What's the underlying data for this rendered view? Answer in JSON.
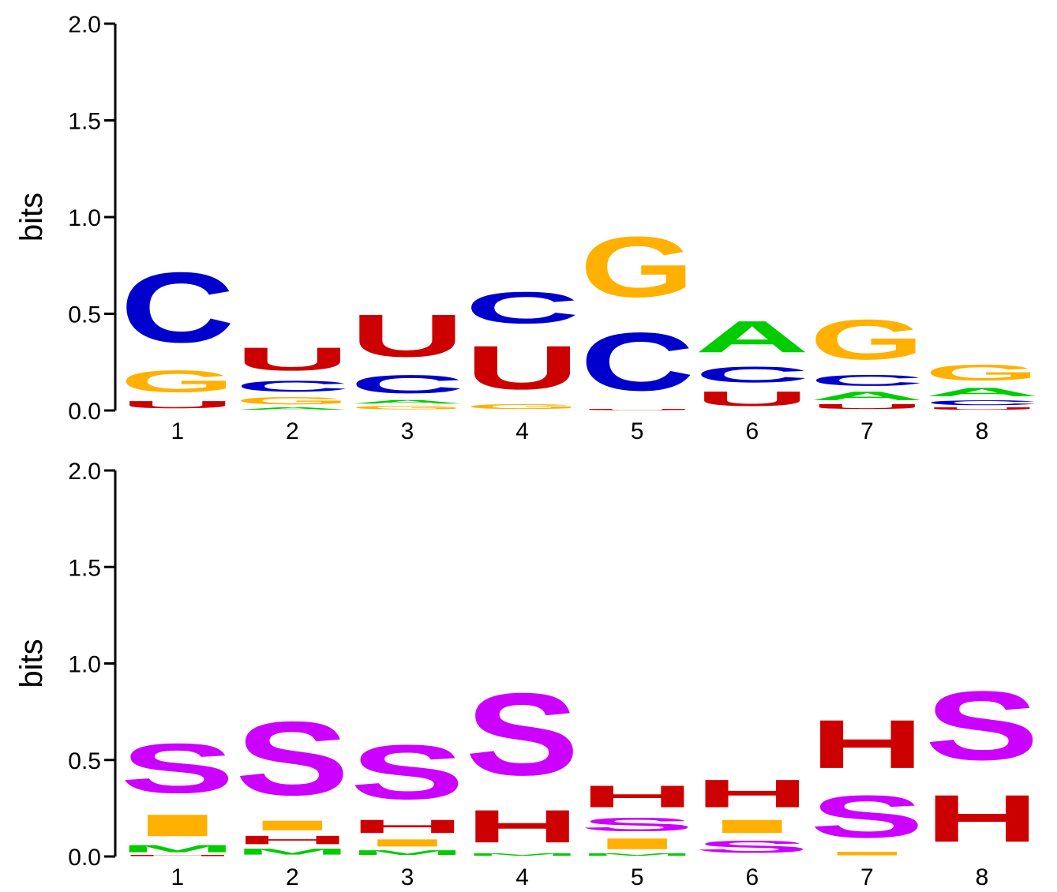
{
  "colors": {
    "A": "#00cc00",
    "C": "#0000cc",
    "G": "#ffb000",
    "U": "#cc0000",
    "H": "#cc0000",
    "S": "#cc00ff",
    "I": "#ffb000",
    "M": "#00cc00"
  },
  "chart_data": [
    {
      "type": "sequence-logo",
      "ylabel": "bits",
      "ylim": [
        0,
        2
      ],
      "yticks": [
        "0.0",
        "0.5",
        "1.0",
        "1.5",
        "2.0"
      ],
      "positions": [
        "1",
        "2",
        "3",
        "4",
        "5",
        "6",
        "7",
        "8"
      ],
      "stacks": [
        [
          {
            "letter": "U",
            "bits": 0.06
          },
          {
            "letter": "G",
            "bits": 0.18
          },
          {
            "letter": "C",
            "bits": 0.58
          }
        ],
        [
          {
            "letter": "A",
            "bits": 0.02
          },
          {
            "letter": "G",
            "bits": 0.06
          },
          {
            "letter": "C",
            "bits": 0.09
          },
          {
            "letter": "U",
            "bits": 0.19
          }
        ],
        [
          {
            "letter": "G",
            "bits": 0.03
          },
          {
            "letter": "A",
            "bits": 0.03
          },
          {
            "letter": "C",
            "bits": 0.15
          },
          {
            "letter": "U",
            "bits": 0.35
          }
        ],
        [
          {
            "letter": "G",
            "bits": 0.04
          },
          {
            "letter": "U",
            "bits": 0.36
          },
          {
            "letter": "C",
            "bits": 0.26
          }
        ],
        [
          {
            "letter": "U",
            "bits": 0.01
          },
          {
            "letter": "C",
            "bits": 0.48
          },
          {
            "letter": "G",
            "bits": 0.5
          }
        ],
        [
          {
            "letter": "U",
            "bits": 0.12
          },
          {
            "letter": "C",
            "bits": 0.13
          },
          {
            "letter": "A",
            "bits": 0.26
          }
        ],
        [
          {
            "letter": "U",
            "bits": 0.04
          },
          {
            "letter": "A",
            "bits": 0.07
          },
          {
            "letter": "C",
            "bits": 0.09
          },
          {
            "letter": "G",
            "bits": 0.33
          }
        ],
        [
          {
            "letter": "U",
            "bits": 0.02
          },
          {
            "letter": "C",
            "bits": 0.04
          },
          {
            "letter": "A",
            "bits": 0.07
          },
          {
            "letter": "G",
            "bits": 0.13
          }
        ]
      ]
    },
    {
      "type": "sequence-logo",
      "ylabel": "bits",
      "ylim": [
        0,
        2
      ],
      "yticks": [
        "0.0",
        "0.5",
        "1.0",
        "1.5",
        "2.0"
      ],
      "positions": [
        "1",
        "2",
        "3",
        "4",
        "5",
        "6",
        "7",
        "8"
      ],
      "stacks": [
        [
          {
            "letter": "H",
            "bits": 0.01
          },
          {
            "letter": "M",
            "bits": 0.06
          },
          {
            "letter": "I",
            "bits": 0.18
          },
          {
            "letter": "S",
            "bits": 0.41
          }
        ],
        [
          {
            "letter": "M",
            "bits": 0.05
          },
          {
            "letter": "H",
            "bits": 0.07
          },
          {
            "letter": "I",
            "bits": 0.08
          },
          {
            "letter": "S",
            "bits": 0.61
          }
        ],
        [
          {
            "letter": "M",
            "bits": 0.04
          },
          {
            "letter": "I",
            "bits": 0.06
          },
          {
            "letter": "H",
            "bits": 0.11
          },
          {
            "letter": "S",
            "bits": 0.45
          }
        ],
        [
          {
            "letter": "M",
            "bits": 0.02
          },
          {
            "letter": "H",
            "bits": 0.27
          },
          {
            "letter": "S",
            "bits": 0.68
          }
        ],
        [
          {
            "letter": "M",
            "bits": 0.02
          },
          {
            "letter": "I",
            "bits": 0.09
          },
          {
            "letter": "S",
            "bits": 0.11
          },
          {
            "letter": "H",
            "bits": 0.18
          }
        ],
        [
          {
            "letter": "S",
            "bits": 0.1
          },
          {
            "letter": "I",
            "bits": 0.11
          },
          {
            "letter": "H",
            "bits": 0.23
          }
        ],
        [
          {
            "letter": "I",
            "bits": 0.03
          },
          {
            "letter": "S",
            "bits": 0.35
          },
          {
            "letter": "H",
            "bits": 0.4
          }
        ],
        [
          {
            "letter": "H",
            "bits": 0.39
          },
          {
            "letter": "S",
            "bits": 0.57
          }
        ]
      ]
    }
  ]
}
